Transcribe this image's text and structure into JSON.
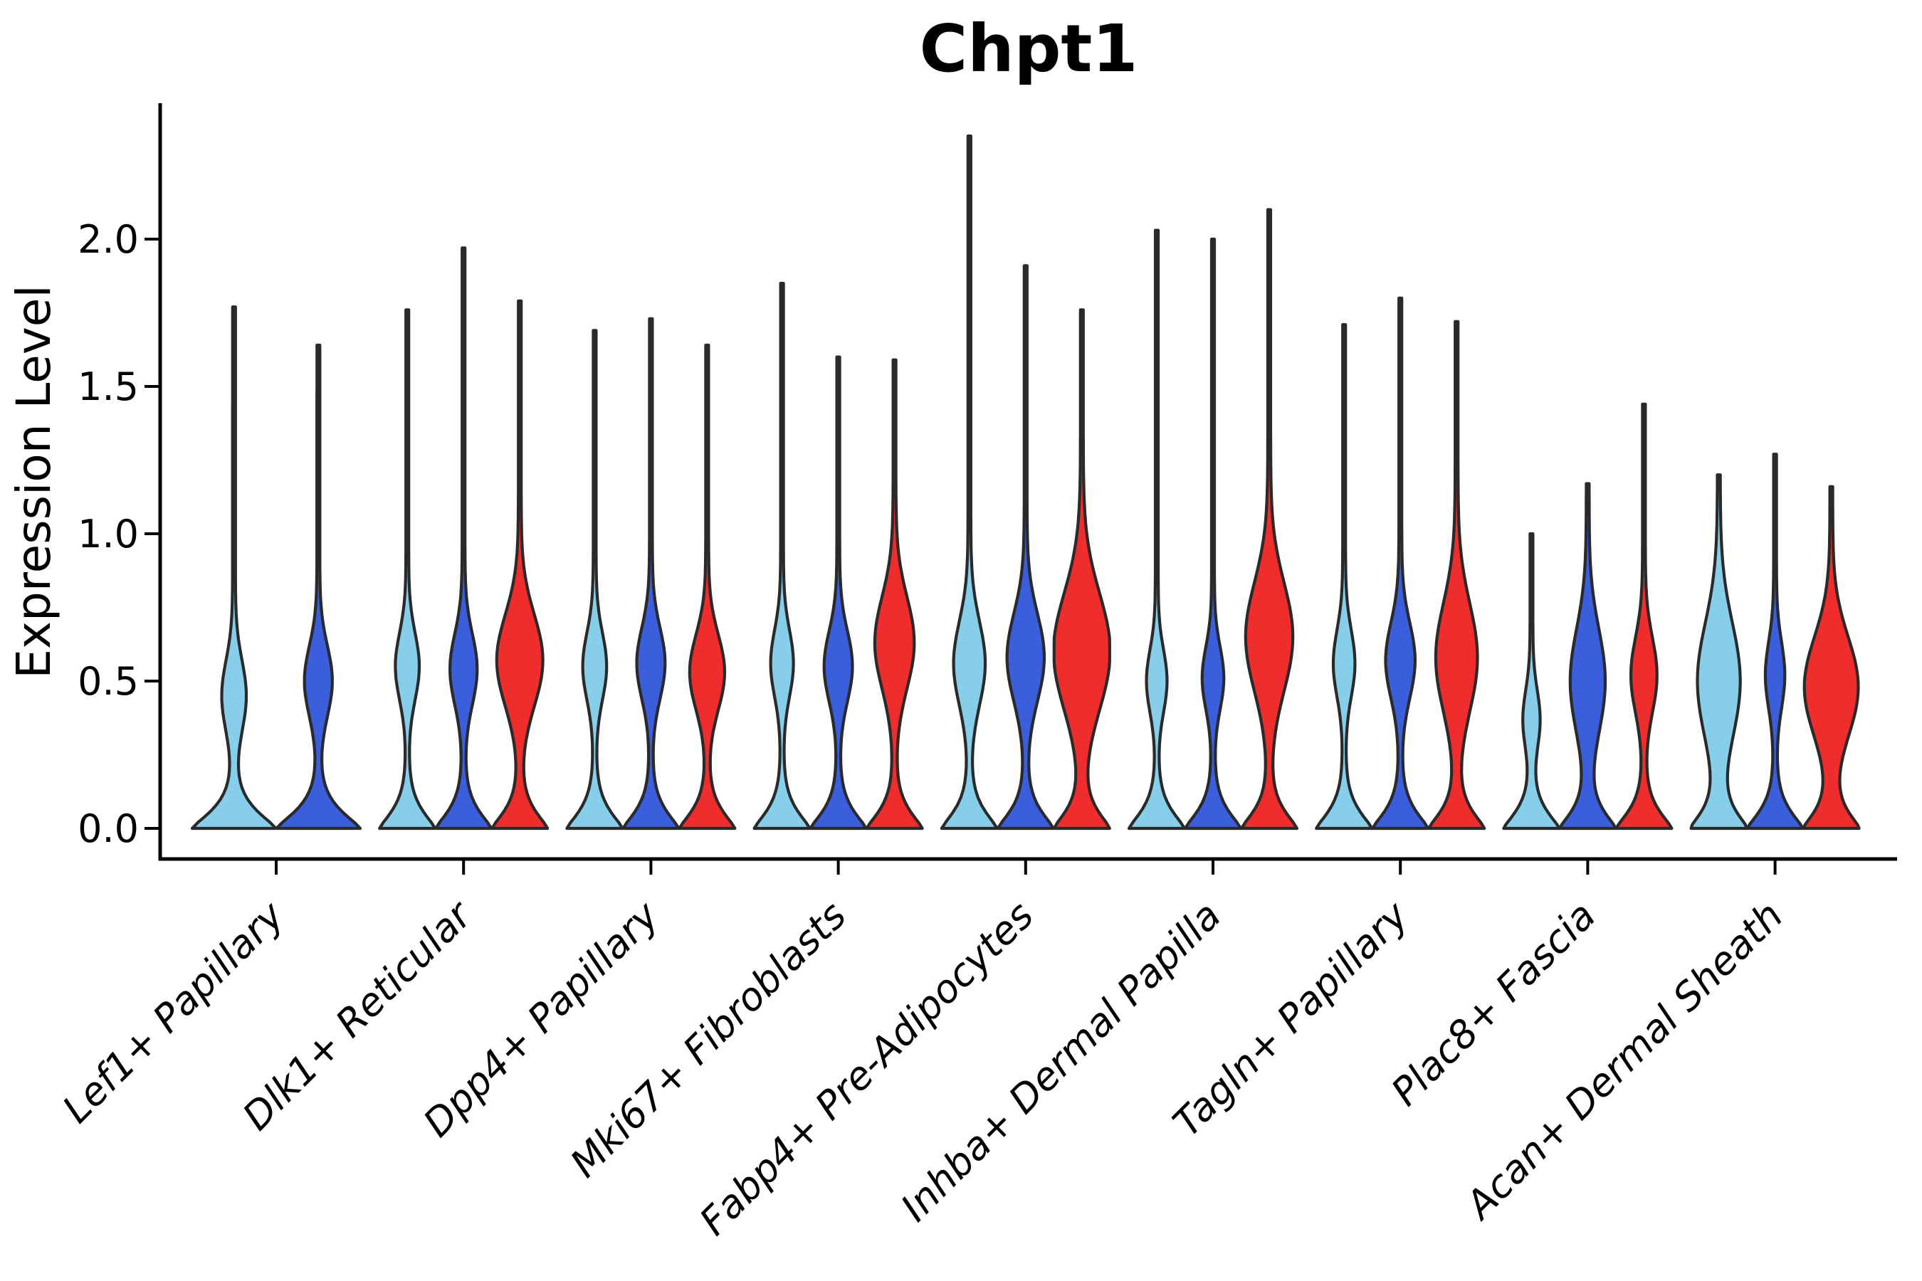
{
  "chart_data": {
    "type": "violin",
    "title": "Chpt1",
    "ylabel": "Expression Level",
    "xlabel": "",
    "ylim": [
      0,
      2.45
    ],
    "yticks": [
      "0.0",
      "0.5",
      "1.0",
      "1.5",
      "2.0"
    ],
    "ytick_values": [
      0,
      0.5,
      1.0,
      1.5,
      2.0
    ],
    "grid": false,
    "legend_position": "none",
    "colors": {
      "sample_light_blue": "#87CEEB",
      "sample_blue": "#3A5EDC",
      "sample_red": "#F02D2D",
      "outline": "#2A2A2A",
      "axis": "#000000"
    },
    "categories": [
      "Lef1+ Papillary",
      "Dlk1+ Reticular",
      "Dpp4+ Papillary",
      "Mki67+ Fibroblasts",
      "Fabp4+ Pre-Adipocytes",
      "Inhba+ Dermal Papilla",
      "Tagln+ Papillary",
      "Plac8+ Fascia",
      "Acan+ Dermal Sheath"
    ],
    "groups": [
      {
        "category": "Lef1+ Papillary",
        "violins": [
          {
            "color": "sample_light_blue",
            "max_expression": 1.77,
            "bulge_center": 0.45,
            "bulge_sigma": 0.17,
            "bulge_amp": 0.26
          },
          {
            "color": "sample_blue",
            "max_expression": 1.64,
            "bulge_center": 0.5,
            "bulge_sigma": 0.17,
            "bulge_amp": 0.3
          }
        ]
      },
      {
        "category": "Dlk1+ Reticular",
        "violins": [
          {
            "color": "sample_light_blue",
            "max_expression": 1.76,
            "bulge_center": 0.55,
            "bulge_sigma": 0.16,
            "bulge_amp": 0.38
          },
          {
            "color": "sample_blue",
            "max_expression": 1.97,
            "bulge_center": 0.54,
            "bulge_sigma": 0.17,
            "bulge_amp": 0.44
          },
          {
            "color": "sample_red",
            "max_expression": 1.79,
            "bulge_center": 0.57,
            "bulge_sigma": 0.22,
            "bulge_amp": 0.78
          }
        ]
      },
      {
        "category": "Dpp4+ Papillary",
        "violins": [
          {
            "color": "sample_light_blue",
            "max_expression": 1.69,
            "bulge_center": 0.55,
            "bulge_sigma": 0.16,
            "bulge_amp": 0.38
          },
          {
            "color": "sample_blue",
            "max_expression": 1.73,
            "bulge_center": 0.56,
            "bulge_sigma": 0.17,
            "bulge_amp": 0.46
          },
          {
            "color": "sample_red",
            "max_expression": 1.64,
            "bulge_center": 0.53,
            "bulge_sigma": 0.18,
            "bulge_amp": 0.58
          }
        ]
      },
      {
        "category": "Mki67+ Fibroblasts",
        "violins": [
          {
            "color": "sample_light_blue",
            "max_expression": 1.85,
            "bulge_center": 0.56,
            "bulge_sigma": 0.16,
            "bulge_amp": 0.36
          },
          {
            "color": "sample_blue",
            "max_expression": 1.6,
            "bulge_center": 0.55,
            "bulge_sigma": 0.17,
            "bulge_amp": 0.46
          },
          {
            "color": "sample_red",
            "max_expression": 1.59,
            "bulge_center": 0.63,
            "bulge_sigma": 0.22,
            "bulge_amp": 0.66
          }
        ]
      },
      {
        "category": "Fabp4+ Pre-Adipocytes",
        "violins": [
          {
            "color": "sample_light_blue",
            "max_expression": 2.35,
            "bulge_center": 0.56,
            "bulge_sigma": 0.2,
            "bulge_amp": 0.52
          },
          {
            "color": "sample_blue",
            "max_expression": 1.91,
            "bulge_center": 0.58,
            "bulge_sigma": 0.21,
            "bulge_amp": 0.62
          },
          {
            "color": "sample_red",
            "max_expression": 1.76,
            "bulge_center": 0.6,
            "bulge_sigma": 0.28,
            "bulge_amp": 0.97
          }
        ]
      },
      {
        "category": "Inhba+ Dermal Papilla",
        "violins": [
          {
            "color": "sample_light_blue",
            "max_expression": 2.03,
            "bulge_center": 0.5,
            "bulge_sigma": 0.15,
            "bulge_amp": 0.32
          },
          {
            "color": "sample_blue",
            "max_expression": 2.0,
            "bulge_center": 0.51,
            "bulge_sigma": 0.15,
            "bulge_amp": 0.34
          },
          {
            "color": "sample_red",
            "max_expression": 2.1,
            "bulge_center": 0.65,
            "bulge_sigma": 0.26,
            "bulge_amp": 0.8
          }
        ]
      },
      {
        "category": "Tagln+ Papillary",
        "violins": [
          {
            "color": "sample_light_blue",
            "max_expression": 1.71,
            "bulge_center": 0.56,
            "bulge_sigma": 0.16,
            "bulge_amp": 0.34
          },
          {
            "color": "sample_blue",
            "max_expression": 1.8,
            "bulge_center": 0.57,
            "bulge_sigma": 0.18,
            "bulge_amp": 0.48
          },
          {
            "color": "sample_red",
            "max_expression": 1.72,
            "bulge_center": 0.58,
            "bulge_sigma": 0.26,
            "bulge_amp": 0.7
          }
        ]
      },
      {
        "category": "Plac8+ Fascia",
        "violins": [
          {
            "color": "sample_light_blue",
            "max_expression": 1.0,
            "bulge_center": 0.37,
            "bulge_sigma": 0.14,
            "bulge_amp": 0.26
          },
          {
            "color": "sample_blue",
            "max_expression": 1.17,
            "bulge_center": 0.5,
            "bulge_sigma": 0.25,
            "bulge_amp": 0.58
          },
          {
            "color": "sample_red",
            "max_expression": 1.44,
            "bulge_center": 0.52,
            "bulge_sigma": 0.18,
            "bulge_amp": 0.42
          }
        ]
      },
      {
        "category": "Acan+ Dermal Sheath",
        "violins": [
          {
            "color": "sample_light_blue",
            "max_expression": 1.2,
            "bulge_center": 0.5,
            "bulge_sigma": 0.28,
            "bulge_amp": 0.72
          },
          {
            "color": "sample_blue",
            "max_expression": 1.27,
            "bulge_center": 0.52,
            "bulge_sigma": 0.16,
            "bulge_amp": 0.3
          },
          {
            "color": "sample_red",
            "max_expression": 1.16,
            "bulge_center": 0.48,
            "bulge_sigma": 0.24,
            "bulge_amp": 0.92
          }
        ]
      }
    ]
  }
}
